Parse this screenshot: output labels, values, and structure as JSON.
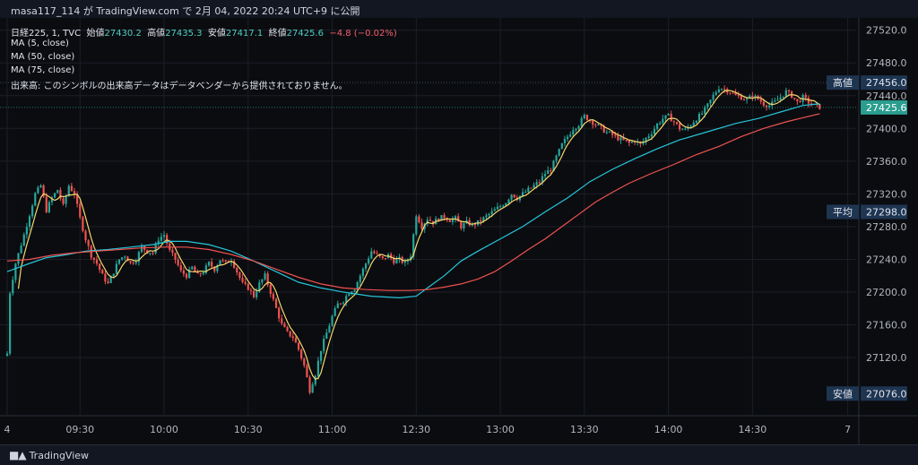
{
  "header": {
    "title": "masa117_114 が TradingView.com で 2月 04, 2022 20:24 UTC+9 に公開"
  },
  "legend": {
    "symbol": "日経225, 1, TVC",
    "open_label": "始値",
    "open": "27430.2",
    "high_label": "高値",
    "high": "27435.3",
    "low_label": "安値",
    "low": "27417.1",
    "close_label": "終値",
    "close": "27425.6",
    "change": "−4.8 (−0.02%)",
    "ma1": "MA (5, close)",
    "ma2": "MA (50, close)",
    "ma3": "MA (75, close)",
    "volume_note": "出来高: このシンボルの出来高データはデータベンダーから提供されておりません。"
  },
  "footer": {
    "brand": "TradingView"
  },
  "price_axis": {
    "ticks": [
      "27520.0",
      "27480.0",
      "27440.0",
      "27400.0",
      "27360.0",
      "27320.0",
      "27280.0",
      "27240.0",
      "27200.0",
      "27160.0",
      "27120.0"
    ],
    "tags": [
      {
        "label": "高値",
        "value": "27456.0",
        "price": 27456
      },
      {
        "label": "平均",
        "value": "27298.0",
        "price": 27298
      },
      {
        "label": "安値",
        "value": "27076.0",
        "price": 27076
      }
    ],
    "last": {
      "value": "27425.6",
      "price": 27425.6
    }
  },
  "time_axis": {
    "ticks": [
      {
        "label": "4",
        "t": 0
      },
      {
        "label": "09:30",
        "t": 26
      },
      {
        "label": "10:00",
        "t": 56
      },
      {
        "label": "10:30",
        "t": 86
      },
      {
        "label": "11:00",
        "t": 116
      },
      {
        "label": "12:30",
        "t": 146
      },
      {
        "label": "13:00",
        "t": 176
      },
      {
        "label": "13:30",
        "t": 206
      },
      {
        "label": "14:00",
        "t": 236
      },
      {
        "label": "14:30",
        "t": 266
      },
      {
        "label": "7",
        "t": 300
      }
    ]
  },
  "chart_data": {
    "type": "line",
    "ylim": [
      27050,
      27535
    ],
    "xlim": [
      0,
      303
    ],
    "colors": {
      "up": "#26a69a",
      "down": "#ef5350",
      "ma5": "#f5d76e",
      "ma50": "#26c6da",
      "ma75": "#ef5350",
      "last": "#26a69a"
    },
    "price_path": [
      [
        0,
        27125
      ],
      [
        1,
        27200
      ],
      [
        3,
        27235
      ],
      [
        6,
        27270
      ],
      [
        8,
        27295
      ],
      [
        10,
        27320
      ],
      [
        12,
        27330
      ],
      [
        14,
        27300
      ],
      [
        16,
        27315
      ],
      [
        18,
        27325
      ],
      [
        20,
        27305
      ],
      [
        22,
        27330
      ],
      [
        24,
        27320
      ],
      [
        26,
        27290
      ],
      [
        28,
        27265
      ],
      [
        30,
        27245
      ],
      [
        32,
        27235
      ],
      [
        34,
        27220
      ],
      [
        36,
        27210
      ],
      [
        38,
        27225
      ],
      [
        40,
        27240
      ],
      [
        42,
        27245
      ],
      [
        44,
        27235
      ],
      [
        46,
        27240
      ],
      [
        48,
        27255
      ],
      [
        50,
        27250
      ],
      [
        52,
        27248
      ],
      [
        54,
        27265
      ],
      [
        56,
        27270
      ],
      [
        58,
        27250
      ],
      [
        60,
        27240
      ],
      [
        62,
        27225
      ],
      [
        64,
        27220
      ],
      [
        66,
        27230
      ],
      [
        68,
        27220
      ],
      [
        70,
        27225
      ],
      [
        72,
        27235
      ],
      [
        74,
        27228
      ],
      [
        76,
        27240
      ],
      [
        78,
        27235
      ],
      [
        80,
        27240
      ],
      [
        82,
        27225
      ],
      [
        84,
        27210
      ],
      [
        86,
        27205
      ],
      [
        88,
        27195
      ],
      [
        90,
        27210
      ],
      [
        92,
        27220
      ],
      [
        94,
        27200
      ],
      [
        96,
        27180
      ],
      [
        98,
        27160
      ],
      [
        100,
        27150
      ],
      [
        102,
        27145
      ],
      [
        104,
        27130
      ],
      [
        106,
        27110
      ],
      [
        108,
        27080
      ],
      [
        110,
        27100
      ],
      [
        112,
        27130
      ],
      [
        114,
        27150
      ],
      [
        116,
        27170
      ],
      [
        118,
        27185
      ],
      [
        120,
        27190
      ],
      [
        122,
        27200
      ],
      [
        124,
        27205
      ],
      [
        126,
        27220
      ],
      [
        128,
        27235
      ],
      [
        130,
        27250
      ],
      [
        132,
        27245
      ],
      [
        134,
        27240
      ],
      [
        136,
        27245
      ],
      [
        138,
        27238
      ],
      [
        140,
        27240
      ],
      [
        142,
        27235
      ],
      [
        144,
        27245
      ],
      [
        146,
        27295
      ],
      [
        148,
        27280
      ],
      [
        150,
        27290
      ],
      [
        152,
        27285
      ],
      [
        154,
        27290
      ],
      [
        156,
        27292
      ],
      [
        158,
        27288
      ],
      [
        160,
        27290
      ],
      [
        162,
        27280
      ],
      [
        164,
        27285
      ],
      [
        166,
        27282
      ],
      [
        168,
        27285
      ],
      [
        170,
        27290
      ],
      [
        172,
        27295
      ],
      [
        174,
        27300
      ],
      [
        176,
        27305
      ],
      [
        178,
        27310
      ],
      [
        180,
        27320
      ],
      [
        182,
        27315
      ],
      [
        184,
        27320
      ],
      [
        186,
        27325
      ],
      [
        188,
        27330
      ],
      [
        190,
        27335
      ],
      [
        192,
        27345
      ],
      [
        194,
        27350
      ],
      [
        196,
        27365
      ],
      [
        198,
        27380
      ],
      [
        200,
        27390
      ],
      [
        202,
        27400
      ],
      [
        204,
        27405
      ],
      [
        206,
        27415
      ],
      [
        208,
        27410
      ],
      [
        210,
        27405
      ],
      [
        212,
        27400
      ],
      [
        214,
        27395
      ],
      [
        216,
        27392
      ],
      [
        218,
        27388
      ],
      [
        220,
        27385
      ],
      [
        222,
        27382
      ],
      [
        224,
        27385
      ],
      [
        226,
        27380
      ],
      [
        228,
        27388
      ],
      [
        230,
        27395
      ],
      [
        232,
        27405
      ],
      [
        234,
        27412
      ],
      [
        236,
        27415
      ],
      [
        238,
        27408
      ],
      [
        240,
        27400
      ],
      [
        242,
        27398
      ],
      [
        244,
        27405
      ],
      [
        246,
        27412
      ],
      [
        248,
        27418
      ],
      [
        250,
        27428
      ],
      [
        252,
        27440
      ],
      [
        254,
        27450
      ],
      [
        256,
        27448
      ],
      [
        258,
        27445
      ],
      [
        260,
        27440
      ],
      [
        262,
        27438
      ],
      [
        264,
        27435
      ],
      [
        266,
        27440
      ],
      [
        268,
        27436
      ],
      [
        270,
        27430
      ],
      [
        272,
        27428
      ],
      [
        274,
        27432
      ],
      [
        276,
        27438
      ],
      [
        278,
        27445
      ],
      [
        280,
        27440
      ],
      [
        282,
        27432
      ],
      [
        284,
        27438
      ],
      [
        286,
        27432
      ],
      [
        288,
        27428
      ],
      [
        290,
        27426
      ]
    ],
    "ma50": [
      [
        0,
        27225
      ],
      [
        8,
        27235
      ],
      [
        14,
        27242
      ],
      [
        20,
        27245
      ],
      [
        28,
        27250
      ],
      [
        36,
        27252
      ],
      [
        44,
        27255
      ],
      [
        52,
        27258
      ],
      [
        58,
        27262
      ],
      [
        64,
        27262
      ],
      [
        72,
        27258
      ],
      [
        80,
        27250
      ],
      [
        88,
        27238
      ],
      [
        96,
        27225
      ],
      [
        104,
        27212
      ],
      [
        112,
        27205
      ],
      [
        120,
        27200
      ],
      [
        130,
        27195
      ],
      [
        140,
        27193
      ],
      [
        146,
        27195
      ],
      [
        150,
        27205
      ],
      [
        156,
        27220
      ],
      [
        162,
        27238
      ],
      [
        168,
        27250
      ],
      [
        176,
        27265
      ],
      [
        184,
        27280
      ],
      [
        192,
        27298
      ],
      [
        200,
        27315
      ],
      [
        208,
        27335
      ],
      [
        216,
        27350
      ],
      [
        224,
        27363
      ],
      [
        232,
        27375
      ],
      [
        240,
        27386
      ],
      [
        250,
        27396
      ],
      [
        260,
        27406
      ],
      [
        268,
        27412
      ],
      [
        276,
        27420
      ],
      [
        284,
        27428
      ],
      [
        290,
        27430
      ]
    ],
    "ma75": [
      [
        0,
        27238
      ],
      [
        8,
        27240
      ],
      [
        16,
        27245
      ],
      [
        24,
        27248
      ],
      [
        32,
        27250
      ],
      [
        40,
        27252
      ],
      [
        48,
        27254
      ],
      [
        56,
        27255
      ],
      [
        64,
        27255
      ],
      [
        72,
        27252
      ],
      [
        80,
        27246
      ],
      [
        88,
        27238
      ],
      [
        96,
        27228
      ],
      [
        104,
        27218
      ],
      [
        112,
        27210
      ],
      [
        120,
        27205
      ],
      [
        128,
        27203
      ],
      [
        136,
        27202
      ],
      [
        144,
        27202
      ],
      [
        150,
        27203
      ],
      [
        156,
        27206
      ],
      [
        162,
        27210
      ],
      [
        168,
        27216
      ],
      [
        174,
        27225
      ],
      [
        180,
        27238
      ],
      [
        186,
        27252
      ],
      [
        192,
        27265
      ],
      [
        198,
        27280
      ],
      [
        204,
        27295
      ],
      [
        210,
        27310
      ],
      [
        216,
        27322
      ],
      [
        222,
        27333
      ],
      [
        230,
        27345
      ],
      [
        238,
        27356
      ],
      [
        246,
        27368
      ],
      [
        254,
        27378
      ],
      [
        262,
        27390
      ],
      [
        270,
        27400
      ],
      [
        278,
        27408
      ],
      [
        284,
        27413
      ],
      [
        290,
        27418
      ]
    ]
  }
}
